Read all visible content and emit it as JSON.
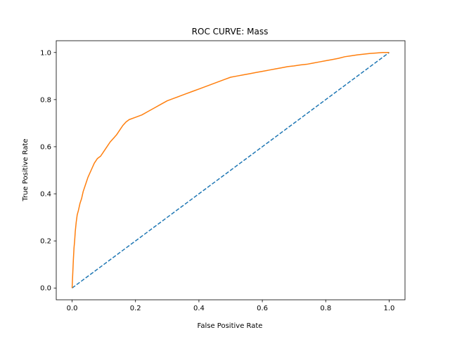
{
  "chart_data": {
    "type": "line",
    "title": "ROC CURVE: Mass",
    "xlabel": "False Positive Rate",
    "ylabel": "True Positive Rate",
    "xlim": [
      -0.05,
      1.05
    ],
    "ylim": [
      -0.05,
      1.05
    ],
    "xticks": [
      0.0,
      0.2,
      0.4,
      0.6,
      0.8,
      1.0
    ],
    "yticks": [
      0.0,
      0.2,
      0.4,
      0.6,
      0.8,
      1.0
    ],
    "xtick_labels": [
      "0.0",
      "0.2",
      "0.4",
      "0.6",
      "0.8",
      "1.0"
    ],
    "ytick_labels": [
      "0.0",
      "0.2",
      "0.4",
      "0.6",
      "0.8",
      "1.0"
    ],
    "grid": false,
    "series": [
      {
        "style": "dashed",
        "color": "#1f77b4",
        "x": [
          0.0,
          1.0
        ],
        "y": [
          0.0,
          1.0
        ]
      },
      {
        "style": "solid",
        "color": "#ff7f0e",
        "x": [
          0.0,
          0.002,
          0.004,
          0.006,
          0.008,
          0.01,
          0.013,
          0.016,
          0.02,
          0.025,
          0.03,
          0.035,
          0.04,
          0.045,
          0.05,
          0.06,
          0.07,
          0.08,
          0.09,
          0.1,
          0.11,
          0.12,
          0.13,
          0.14,
          0.15,
          0.16,
          0.17,
          0.18,
          0.2,
          0.22,
          0.24,
          0.26,
          0.28,
          0.3,
          0.32,
          0.34,
          0.36,
          0.38,
          0.4,
          0.42,
          0.44,
          0.46,
          0.48,
          0.5,
          0.52,
          0.54,
          0.56,
          0.58,
          0.6,
          0.62,
          0.64,
          0.66,
          0.68,
          0.7,
          0.72,
          0.74,
          0.76,
          0.78,
          0.8,
          0.82,
          0.84,
          0.86,
          0.88,
          0.9,
          0.92,
          0.94,
          0.96,
          0.98,
          1.0
        ],
        "y": [
          0.0,
          0.06,
          0.12,
          0.17,
          0.2,
          0.24,
          0.28,
          0.31,
          0.33,
          0.36,
          0.38,
          0.41,
          0.43,
          0.45,
          0.47,
          0.5,
          0.53,
          0.55,
          0.56,
          0.58,
          0.6,
          0.62,
          0.635,
          0.65,
          0.67,
          0.69,
          0.705,
          0.715,
          0.725,
          0.735,
          0.75,
          0.765,
          0.78,
          0.795,
          0.805,
          0.815,
          0.825,
          0.835,
          0.845,
          0.855,
          0.865,
          0.875,
          0.885,
          0.895,
          0.9,
          0.905,
          0.91,
          0.915,
          0.92,
          0.925,
          0.93,
          0.935,
          0.94,
          0.943,
          0.947,
          0.95,
          0.955,
          0.96,
          0.965,
          0.97,
          0.975,
          0.982,
          0.986,
          0.99,
          0.993,
          0.996,
          0.998,
          1.0,
          1.0
        ]
      }
    ]
  }
}
